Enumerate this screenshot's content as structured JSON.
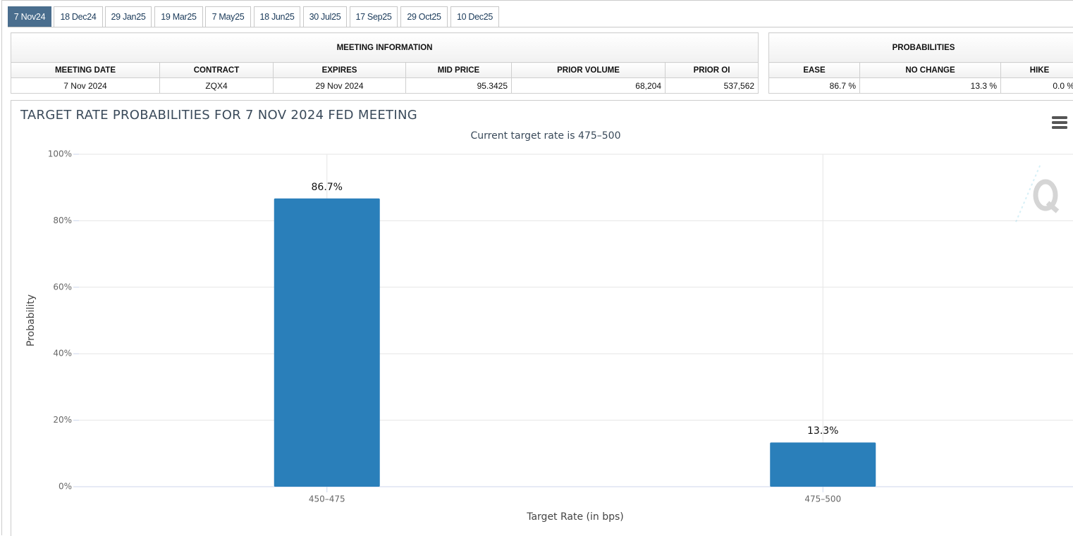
{
  "tabs": [
    "7 Nov24",
    "18 Dec24",
    "29 Jan25",
    "19 Mar25",
    "7 May25",
    "18 Jun25",
    "30 Jul25",
    "17 Sep25",
    "29 Oct25",
    "10 Dec25"
  ],
  "meeting_info": {
    "title": "MEETING INFORMATION",
    "headers": [
      "MEETING DATE",
      "CONTRACT",
      "EXPIRES",
      "MID PRICE",
      "PRIOR VOLUME",
      "PRIOR OI"
    ],
    "rows": [
      [
        "7 Nov 2024",
        "ZQX4",
        "29 Nov 2024",
        "95.3425",
        "68,204",
        "537,562"
      ]
    ]
  },
  "probabilities": {
    "title": "PROBABILITIES",
    "headers": [
      "EASE",
      "NO CHANGE",
      "HIKE"
    ],
    "rows": [
      [
        "86.7 %",
        "13.3 %",
        "0.0 %"
      ]
    ]
  },
  "chart_data": {
    "type": "bar",
    "title": "TARGET RATE PROBABILITIES FOR 7 NOV 2024 FED MEETING",
    "subtitle": "Current target rate is 475–500",
    "x_label": "Target Rate (in bps)",
    "y_label": "Probability",
    "categories": [
      "450–475",
      "475–500"
    ],
    "values": [
      86.7,
      13.3
    ],
    "value_labels": [
      "86.7%",
      "13.3%"
    ],
    "color": "#2a7fba",
    "ylim": [
      0,
      100
    ],
    "yticks": [
      {
        "value": 0,
        "label": "0%"
      },
      {
        "value": 20,
        "label": "20%"
      },
      {
        "value": 40,
        "label": "40%"
      },
      {
        "value": 60,
        "label": "60%"
      },
      {
        "value": 80,
        "label": "80%"
      },
      {
        "value": 100,
        "label": "100%"
      }
    ],
    "grid": true
  }
}
